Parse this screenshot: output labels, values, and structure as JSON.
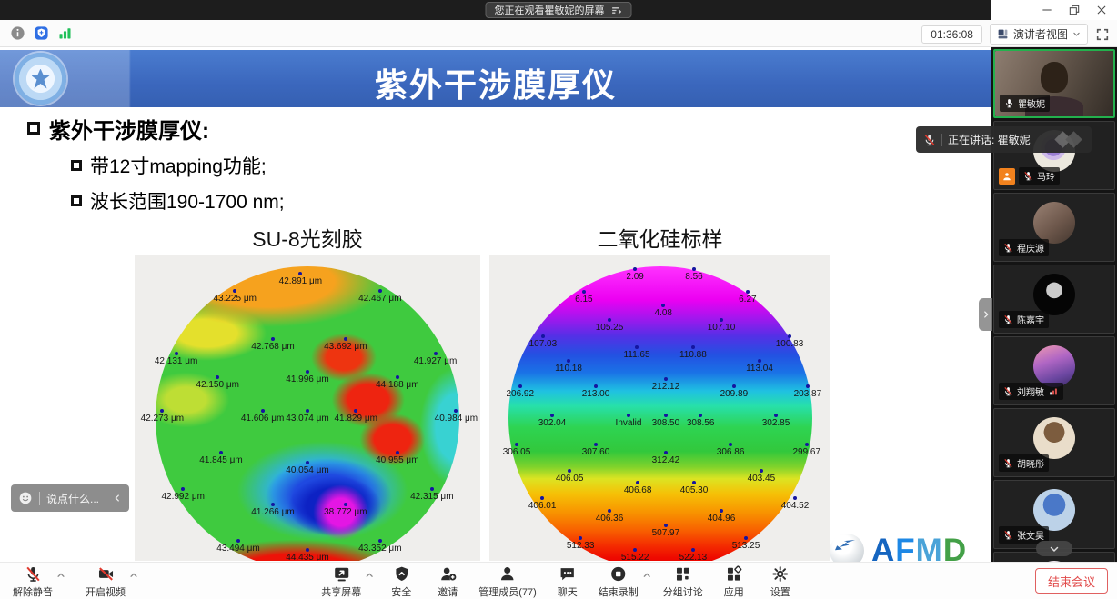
{
  "banner": {
    "text": "您正在观看瞿敏妮的屏幕"
  },
  "statusbar": {
    "time": "01:36:08",
    "view_mode": "演讲者视图"
  },
  "slide": {
    "title": "紫外干涉膜厚仪",
    "bullets": {
      "main": "紫外干涉膜厚仪:",
      "sub": [
        "带12寸mapping功能;",
        "波长范围190-1700 nm;"
      ]
    },
    "logo_text": "AFMD"
  },
  "chart_data": [
    {
      "type": "heatmap",
      "variant": "circular-wafer-map",
      "title": "SU-8光刻胶",
      "unit": "μm",
      "range": {
        "min": 38.772,
        "max": 44.435
      },
      "colormap": "rainbow (blue/magenta=low, green=mid, red=high)",
      "points": [
        {
          "label": "42.891 μm",
          "x": 48,
          "y": 6
        },
        {
          "label": "43.225 μm",
          "x": 29,
          "y": 11.5
        },
        {
          "label": "42.467 μm",
          "x": 71,
          "y": 11.5
        },
        {
          "label": "42.768 μm",
          "x": 40,
          "y": 27.5
        },
        {
          "label": "43.692 μm",
          "x": 61,
          "y": 27.5
        },
        {
          "label": "42.131 μm",
          "x": 12,
          "y": 32
        },
        {
          "label": "41.927 μm",
          "x": 87,
          "y": 32
        },
        {
          "label": "42.150 μm",
          "x": 24,
          "y": 40
        },
        {
          "label": "41.996 μm",
          "x": 50,
          "y": 38
        },
        {
          "label": "44.188 μm",
          "x": 76,
          "y": 40
        },
        {
          "label": "42.273 μm",
          "x": 8,
          "y": 51
        },
        {
          "label": "41.606 μm",
          "x": 37,
          "y": 51
        },
        {
          "label": "43.074 μm",
          "x": 50,
          "y": 51
        },
        {
          "label": "41.829 μm",
          "x": 64,
          "y": 51
        },
        {
          "label": "40.984 μm",
          "x": 93,
          "y": 51
        },
        {
          "label": "41.845 μm",
          "x": 25,
          "y": 64.5
        },
        {
          "label": "40.054 μm",
          "x": 50,
          "y": 68
        },
        {
          "label": "40.955 μm",
          "x": 76,
          "y": 64.5
        },
        {
          "label": "42.992 μm",
          "x": 14,
          "y": 76.5
        },
        {
          "label": "41.266 μm",
          "x": 40,
          "y": 81.5
        },
        {
          "label": "38.772 μm",
          "x": 61,
          "y": 81.5
        },
        {
          "label": "42.315 μm",
          "x": 86,
          "y": 76.5
        },
        {
          "label": "43.494 μm",
          "x": 30,
          "y": 93.5
        },
        {
          "label": "44.435 μm",
          "x": 50,
          "y": 96.5
        },
        {
          "label": "43.352 μm",
          "x": 71,
          "y": 93.5
        }
      ]
    },
    {
      "type": "heatmap",
      "variant": "circular-wafer-map",
      "title": "二氧化硅标样",
      "unit": "",
      "range": {
        "min": 2.09,
        "max": 522.13
      },
      "colormap": "rainbow horizontal bands (magenta=low top, red=high bottom)",
      "points": [
        {
          "label": "2.09",
          "x": 42.7,
          "y": 4.5
        },
        {
          "label": "8.56",
          "x": 60,
          "y": 4.5
        },
        {
          "label": "6.15",
          "x": 27.7,
          "y": 12
        },
        {
          "label": "6.27",
          "x": 75.7,
          "y": 12
        },
        {
          "label": "4.08",
          "x": 51,
          "y": 16.5
        },
        {
          "label": "105.25",
          "x": 35.2,
          "y": 21
        },
        {
          "label": "107.10",
          "x": 68,
          "y": 21
        },
        {
          "label": "107.03",
          "x": 15.7,
          "y": 26.5
        },
        {
          "label": "100.83",
          "x": 88,
          "y": 26.5
        },
        {
          "label": "111.65",
          "x": 43.2,
          "y": 30
        },
        {
          "label": "110.88",
          "x": 59.7,
          "y": 30
        },
        {
          "label": "110.18",
          "x": 23.2,
          "y": 34.5
        },
        {
          "label": "113.04",
          "x": 79.2,
          "y": 34.5
        },
        {
          "label": "212.12",
          "x": 51.7,
          "y": 40.5
        },
        {
          "label": "206.92",
          "x": 9,
          "y": 43
        },
        {
          "label": "213.00",
          "x": 31.2,
          "y": 43
        },
        {
          "label": "209.89",
          "x": 71.7,
          "y": 43
        },
        {
          "label": "203.87",
          "x": 93.3,
          "y": 43
        },
        {
          "label": "302.04",
          "x": 18.4,
          "y": 52.5
        },
        {
          "label": "Invalid",
          "x": 40.8,
          "y": 52.5
        },
        {
          "label": "308.50",
          "x": 51.7,
          "y": 52.5
        },
        {
          "label": "308.56",
          "x": 61.9,
          "y": 52.5
        },
        {
          "label": "302.85",
          "x": 84,
          "y": 52.5
        },
        {
          "label": "306.05",
          "x": 8,
          "y": 62
        },
        {
          "label": "307.60",
          "x": 31.2,
          "y": 62
        },
        {
          "label": "312.42",
          "x": 51.7,
          "y": 64.5
        },
        {
          "label": "306.86",
          "x": 70.7,
          "y": 62
        },
        {
          "label": "299.67",
          "x": 93,
          "y": 62
        },
        {
          "label": "406.05",
          "x": 23.5,
          "y": 70.5
        },
        {
          "label": "403.45",
          "x": 79.7,
          "y": 70.5
        },
        {
          "label": "406.68",
          "x": 43.5,
          "y": 74.5
        },
        {
          "label": "405.30",
          "x": 60,
          "y": 74.5
        },
        {
          "label": "406.01",
          "x": 15.5,
          "y": 79.5
        },
        {
          "label": "404.52",
          "x": 89.6,
          "y": 79.5
        },
        {
          "label": "406.36",
          "x": 35.2,
          "y": 83.5
        },
        {
          "label": "404.96",
          "x": 68,
          "y": 83.5
        },
        {
          "label": "507.97",
          "x": 51.7,
          "y": 88.5
        },
        {
          "label": "512.33",
          "x": 26.7,
          "y": 92.5
        },
        {
          "label": "513.25",
          "x": 75.2,
          "y": 92.5
        },
        {
          "label": "515.22",
          "x": 42.7,
          "y": 96.5
        },
        {
          "label": "522.13",
          "x": 59.7,
          "y": 96.5
        }
      ]
    }
  ],
  "toast": {
    "text": "正在讲话: 瞿敏妮"
  },
  "chatbox": {
    "placeholder": "说点什么..."
  },
  "participants": [
    {
      "name": "瞿敏妮",
      "avatar": "video",
      "muted": false,
      "speaking": true
    },
    {
      "name": "马玲",
      "avatar": "flowers",
      "muted": true,
      "hand_raised": true
    },
    {
      "name": "程庆源",
      "avatar": "family",
      "muted": true
    },
    {
      "name": "陈嘉宇",
      "avatar": "moon",
      "muted": true
    },
    {
      "name": "刘翔敏",
      "avatar": "mountains",
      "muted": true,
      "signal": true
    },
    {
      "name": "胡晓彤",
      "avatar": "anime-brown",
      "muted": true
    },
    {
      "name": "张文昊",
      "avatar": "anime-blue",
      "muted": true
    },
    {
      "name": "",
      "avatar": "pink",
      "muted": true,
      "partial": true
    }
  ],
  "toolbar": {
    "left": [
      {
        "label": "解除静音",
        "icon": "mic-muted",
        "chevron": true
      },
      {
        "label": "开启视频",
        "icon": "cam-muted",
        "chevron": true
      }
    ],
    "center": [
      {
        "label": "共享屏幕",
        "icon": "share",
        "chevron": true
      },
      {
        "label": "安全",
        "icon": "shield"
      },
      {
        "label": "邀请",
        "icon": "invite"
      },
      {
        "label": "管理成员(77)",
        "icon": "members"
      },
      {
        "label": "聊天",
        "icon": "chat"
      },
      {
        "label": "结束录制",
        "icon": "record-stop",
        "chevron": true
      },
      {
        "label": "分组讨论",
        "icon": "breakout"
      },
      {
        "label": "应用",
        "icon": "apps"
      },
      {
        "label": "设置",
        "icon": "gear"
      }
    ],
    "end_button": "结束会议"
  },
  "colors": {
    "header_blue": "#3b67bd",
    "speaking_green": "#23b14d",
    "end_red": "#e14b4b",
    "badge_orange": "#f2821e",
    "shield_blue": "#2f6fe4",
    "signal_green": "#21c05a",
    "logo_letters": [
      "#1565c0",
      "#1e88e5",
      "#4aa3d8",
      "#43a047"
    ]
  }
}
